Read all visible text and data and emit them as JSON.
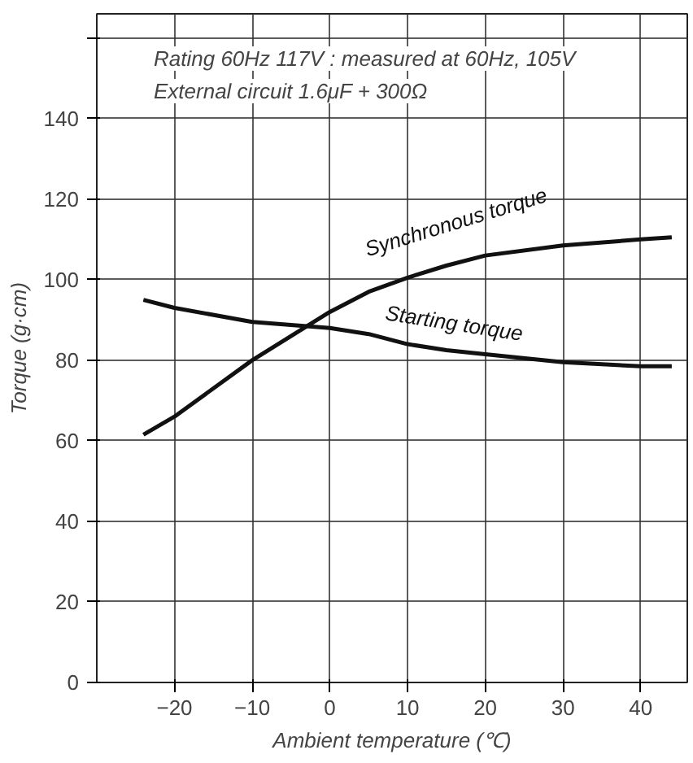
{
  "chart_data": {
    "type": "line",
    "xlabel": "Ambient temperature (℃)",
    "ylabel": "Torque (g·cm)",
    "annotations": [
      "Rating 60Hz 117V : measured at 60Hz, 105V",
      "External circuit 1.6μF + 300Ω"
    ],
    "x": [
      -24,
      -20,
      -10,
      0,
      5,
      10,
      15,
      20,
      30,
      40,
      44
    ],
    "series": [
      {
        "name": "Synchronous torque",
        "color": "#111111",
        "values": [
          61.5,
          66,
          80,
          92,
          97,
          100.5,
          103.5,
          106,
          108.5,
          110,
          110.5
        ]
      },
      {
        "name": "Starting torque",
        "color": "#111111",
        "values": [
          95,
          93,
          89.5,
          88,
          86.5,
          84,
          82.5,
          81.5,
          79.5,
          78.5,
          78.5
        ]
      }
    ],
    "xlim": [
      -30,
      46
    ],
    "ylim": [
      0,
      166
    ],
    "xticks": [
      {
        "value": -20,
        "label": "−20"
      },
      {
        "value": -10,
        "label": "−10"
      },
      0,
      10,
      20,
      30,
      40
    ],
    "yticks": [
      0,
      20,
      40,
      60,
      80,
      100,
      120,
      140,
      {
        "value": 160,
        "label": null
      }
    ],
    "grid": true,
    "legend": false,
    "marker": "none",
    "line_style": "solid"
  }
}
